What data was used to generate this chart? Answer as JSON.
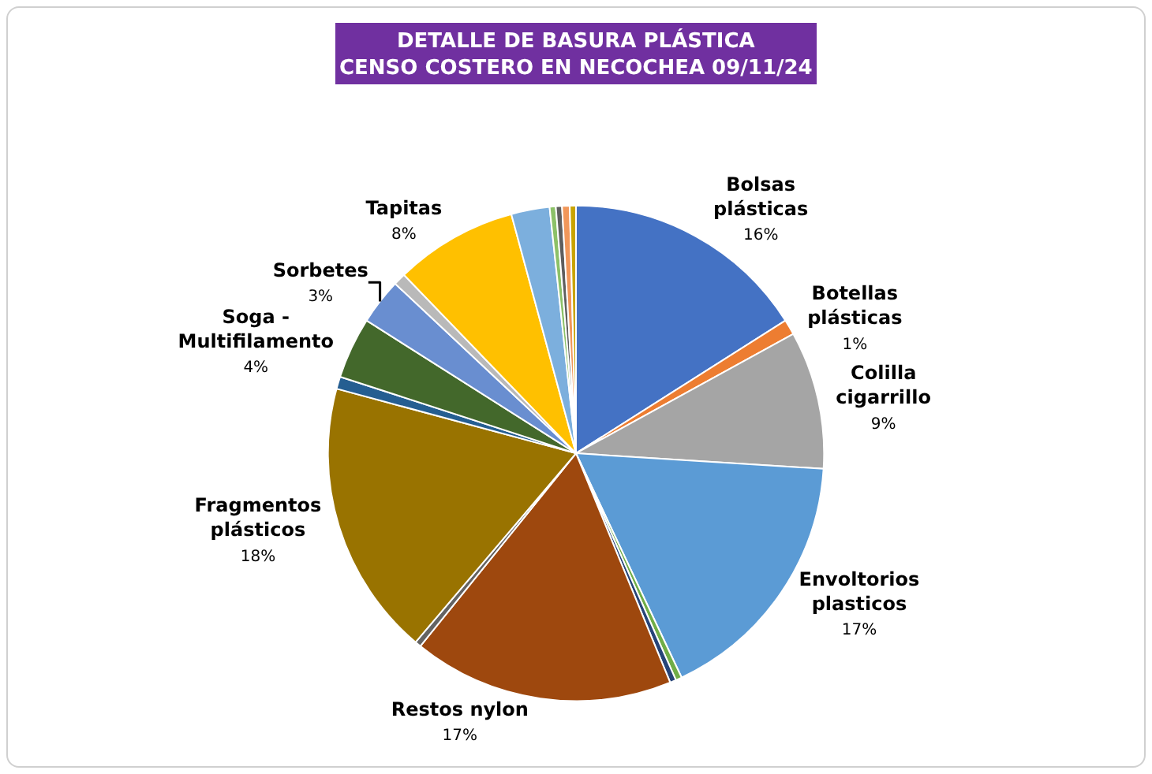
{
  "chart_data": {
    "type": "pie",
    "title": "DETALLE DE BASURA PLÁSTICA\nCENSO COSTERO EN NECOCHEA 09/11/24",
    "categories": [
      "Bolsas plásticas",
      "Botellas plásticas",
      "Colilla cigarrillo",
      "Envoltorios plasticos",
      null,
      null,
      "Restos nylon",
      null,
      "Fragmentos plásticos",
      null,
      "Soga - Multifilamento",
      "Sorbetes",
      null,
      "Tapitas",
      null,
      null,
      null,
      null,
      null
    ],
    "values": [
      16,
      1,
      9,
      17,
      0.4,
      0.4,
      17,
      0.4,
      18,
      0.8,
      4,
      3,
      0.8,
      8,
      2.5,
      0.4,
      0.4,
      0.5,
      0.4
    ],
    "colors": [
      "#4472c4",
      "#ed7d31",
      "#a5a5a5",
      "#5b9bd5",
      "#70ad47",
      "#264478",
      "#9e480e",
      "#636363",
      "#997300",
      "#255e91",
      "#43682b",
      "#698ed0",
      "#b9b9b9",
      "#ffc000",
      "#7cafdd",
      "#8cc168",
      "#5e5e5e",
      "#f1975a",
      "#c9a400"
    ],
    "value_labels": [
      "16%",
      "1%",
      "9%",
      "17%",
      null,
      null,
      "17%",
      null,
      "18%",
      null,
      "4%",
      "3%",
      null,
      "8%",
      null,
      null,
      null,
      null,
      null
    ],
    "legend": false
  }
}
